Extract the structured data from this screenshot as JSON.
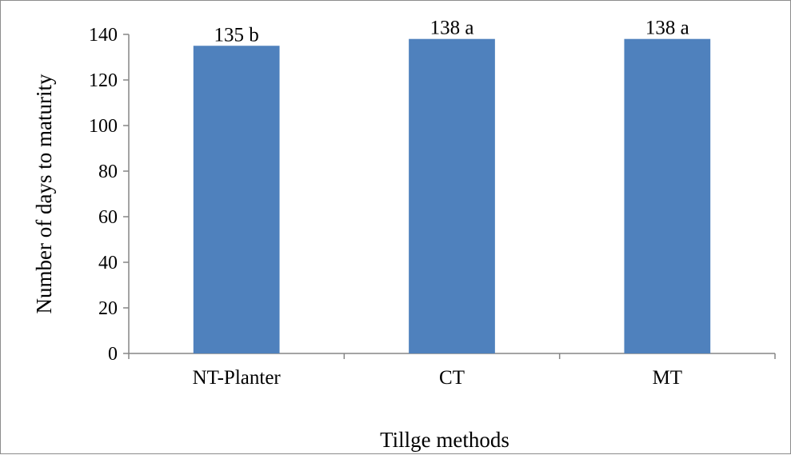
{
  "chart_data": {
    "type": "bar",
    "categories": [
      "NT-Planter",
      "CT",
      "MT"
    ],
    "values": [
      135,
      138,
      138
    ],
    "data_labels": [
      "135 b",
      "138 a",
      "138 a"
    ],
    "title": "",
    "xlabel": "Tillge methods",
    "ylabel": "Number of days to maturity",
    "ylim": [
      0,
      140
    ],
    "yticks": [
      0,
      20,
      40,
      60,
      80,
      100,
      120,
      140
    ],
    "bar_color": "#4f81bd",
    "grid": false,
    "legend": "none"
  }
}
